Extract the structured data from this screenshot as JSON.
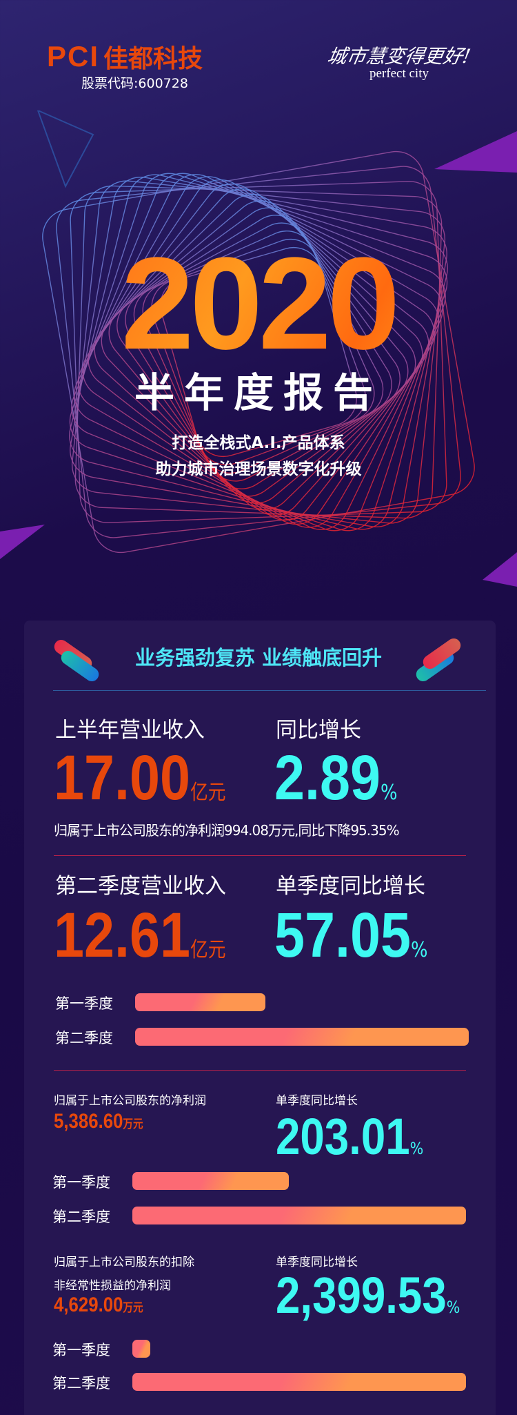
{
  "header": {
    "logo_mark": "PCI",
    "logo_name": "佳都科技",
    "stock_code": "股票代码:600728",
    "slogan_cn": "城市慧变得更好!",
    "slogan_en": "perfect city"
  },
  "hero": {
    "year": "2020",
    "title": "半年度报告",
    "subtitle_1": "打造全栈式A.I.产品体系",
    "subtitle_2": "助力城市治理场景数字化升级"
  },
  "card": {
    "heading": "业务强劲复苏 业绩触底回升",
    "h1": {
      "label": "上半年营业收入",
      "value": "17.00",
      "unit": "亿元",
      "growth_label": "同比增长",
      "growth": "2.89",
      "pct": "%"
    },
    "note": "归属于上市公司股东的净利润994.08万元,同比下降95.35%",
    "q2": {
      "label": "第二季度营业收入",
      "value": "12.61",
      "unit": "亿元",
      "growth_label": "单季度同比增长",
      "growth": "57.05",
      "pct": "%",
      "bars": [
        {
          "label": "第一季度",
          "fraction": 0.39
        },
        {
          "label": "第二季度",
          "fraction": 1.0
        }
      ]
    },
    "profit": {
      "label": "归属于上市公司股东的净利润",
      "value": "5,386.60",
      "unit": "万元",
      "growth_label": "单季度同比增长",
      "growth": "203.01",
      "pct": "%",
      "bars": [
        {
          "label": "第一季度",
          "fraction": 0.47
        },
        {
          "label": "第二季度",
          "fraction": 1.0
        }
      ]
    },
    "deducted": {
      "label_1": "归属于上市公司股东的扣除",
      "label_2": "非经常性损益的净利润",
      "value": "4,629.00",
      "unit": "万元",
      "growth_label": "单季度同比增长",
      "growth": "2,399.53",
      "pct": "%",
      "bars": [
        {
          "label": "第一季度",
          "fraction": 0.05
        },
        {
          "label": "第二季度",
          "fraction": 1.0
        }
      ]
    }
  },
  "colors": {
    "orange": "#e8480c",
    "cyan": "#3ef9f2",
    "heading": "#4ee6f6",
    "bar_start": "#fc6a74",
    "bar_end": "#fe9650",
    "card": "#261652"
  }
}
